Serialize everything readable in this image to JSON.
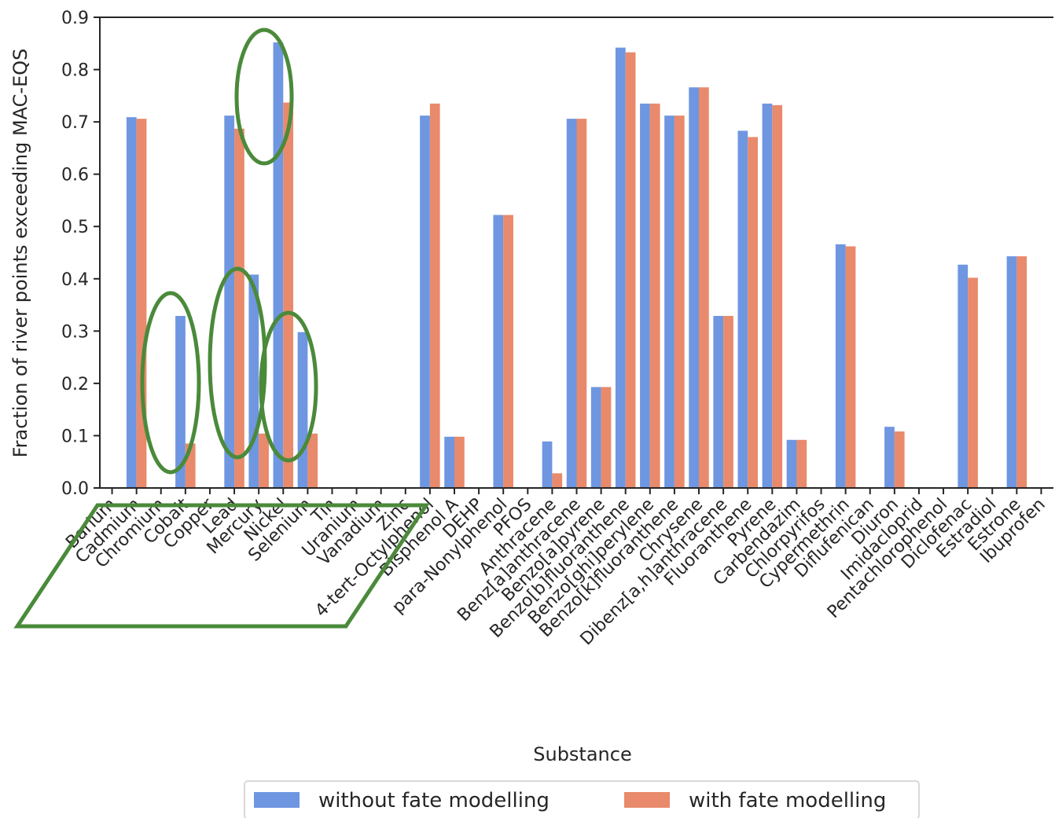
{
  "chart_data": {
    "type": "bar",
    "xlabel": "Substance",
    "ylabel": "Fraction of river points exceeding MAC-EQS",
    "ylim": [
      0,
      0.9
    ],
    "yticks": [
      "0.0",
      "0.1",
      "0.2",
      "0.3",
      "0.4",
      "0.5",
      "0.6",
      "0.7",
      "0.8",
      "0.9"
    ],
    "legend_position": "bottom-center",
    "grid": false,
    "categories": [
      "Barium",
      "Cadmium",
      "Chromium",
      "Cobalt",
      "Copper",
      "Lead",
      "Mercury",
      "Nickel",
      "Selenium",
      "Tin",
      "Uranium",
      "Vanadium",
      "Zinc",
      "4-tert-Octylphenol",
      "Bisphenol A",
      "DEHP",
      "para-Nonylphenol",
      "PFOS",
      "Anthracene",
      "Benz[a]anthracene",
      "Benzo[a]pyrene",
      "Benzo[b]fluoranthene",
      "Benzo[ghi]perylene",
      "Benzo[k]fluoranthene",
      "Chrysene",
      "Dibenz[a,h]anthracene",
      "Fluoranthene",
      "Pyrene",
      "Carbendazim",
      "Chlorpyrifos",
      "Cypermethrin",
      "Diflufenican",
      "Diuron",
      "Imidacloprid",
      "Pentachlorophenol",
      "Diclofenac",
      "Estradiol",
      "Estrone",
      "Ibuprofen"
    ],
    "series": [
      {
        "name": "without fate modelling",
        "color": "#6f96e0",
        "values": [
          0,
          0.709,
          0,
          0.329,
          0,
          0.712,
          0.408,
          0.852,
          0.298,
          0,
          0,
          0,
          0,
          0.712,
          0.098,
          0,
          0.522,
          0,
          0.089,
          0.706,
          0.193,
          0.842,
          0.735,
          0.712,
          0.766,
          0.329,
          0.683,
          0.735,
          0.092,
          0,
          0.466,
          0,
          0.117,
          0,
          0,
          0.427,
          0,
          0.443,
          0
        ]
      },
      {
        "name": "with fate modelling",
        "color": "#e88a6b",
        "values": [
          0,
          0.706,
          0,
          0.085,
          0,
          0.687,
          0.104,
          0.737,
          0.104,
          0,
          0,
          0,
          0,
          0.735,
          0.098,
          0,
          0.522,
          0,
          0.028,
          0.706,
          0.193,
          0.833,
          0.735,
          0.712,
          0.766,
          0.329,
          0.671,
          0.732,
          0.092,
          0,
          0.462,
          0,
          0.108,
          0,
          0,
          0.402,
          0,
          0.443,
          0
        ]
      }
    ],
    "annotations": [
      {
        "type": "ellipse",
        "color": "#4a8a3a",
        "around": "Chromium / Cobalt bars"
      },
      {
        "type": "ellipse",
        "color": "#4a8a3a",
        "around": "Lead / Mercury bars"
      },
      {
        "type": "ellipse",
        "color": "#4a8a3a",
        "around": "Mercury top bars"
      },
      {
        "type": "ellipse",
        "color": "#4a8a3a",
        "around": "Nickel / Selenium bars"
      },
      {
        "type": "parallelogram",
        "color": "#4a8a3a",
        "around": "metal category labels Barium to Zinc"
      }
    ]
  }
}
